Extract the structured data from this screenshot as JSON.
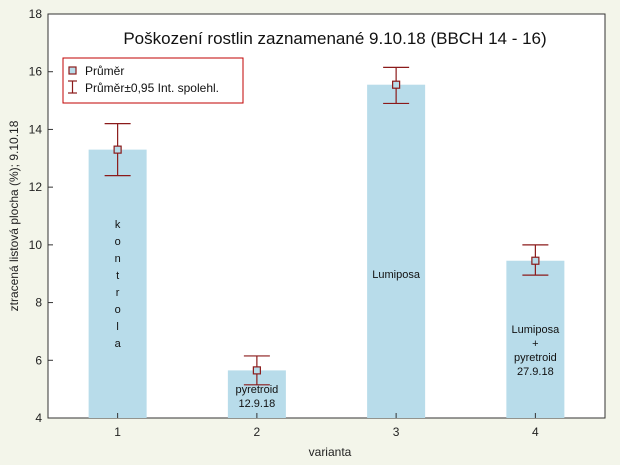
{
  "chart_data": {
    "type": "bar",
    "title": "Poškození rostlin zaznamenané 9.10.18 (BBCH 14 - 16)",
    "xlabel": "varianta",
    "ylabel": "ztracená listová plocha (%); 9.10.18",
    "categories": [
      "1",
      "2",
      "3",
      "4"
    ],
    "ylim": [
      4,
      18
    ],
    "yticks": [
      4,
      6,
      8,
      10,
      12,
      14,
      16,
      18
    ],
    "grid": false,
    "legend_position": "top-left",
    "series": [
      {
        "name": "Průměr",
        "values": [
          13.3,
          5.65,
          15.55,
          9.45
        ],
        "ci_low": [
          12.4,
          5.15,
          14.9,
          8.95
        ],
        "ci_high": [
          14.2,
          6.15,
          16.15,
          10.0
        ]
      }
    ],
    "legend": [
      "Průměr",
      "Průměr±0,95 Int. spolehl."
    ],
    "bar_annotations": [
      {
        "category": "1",
        "lines": [
          "k",
          "o",
          "n",
          "t",
          "r",
          "o",
          "l",
          "a"
        ]
      },
      {
        "category": "2",
        "lines": [
          "pyretroid",
          "12.9.18"
        ]
      },
      {
        "category": "3",
        "lines": [
          "Lumiposa"
        ]
      },
      {
        "category": "4",
        "lines": [
          "Lumiposa",
          "+",
          "pyretroid",
          "27.9.18"
        ]
      }
    ],
    "colors": {
      "bar": "#b8dcea",
      "error": "#8b1a1a",
      "marker": "#8b1a1a",
      "legend_border": "#c00000"
    }
  }
}
